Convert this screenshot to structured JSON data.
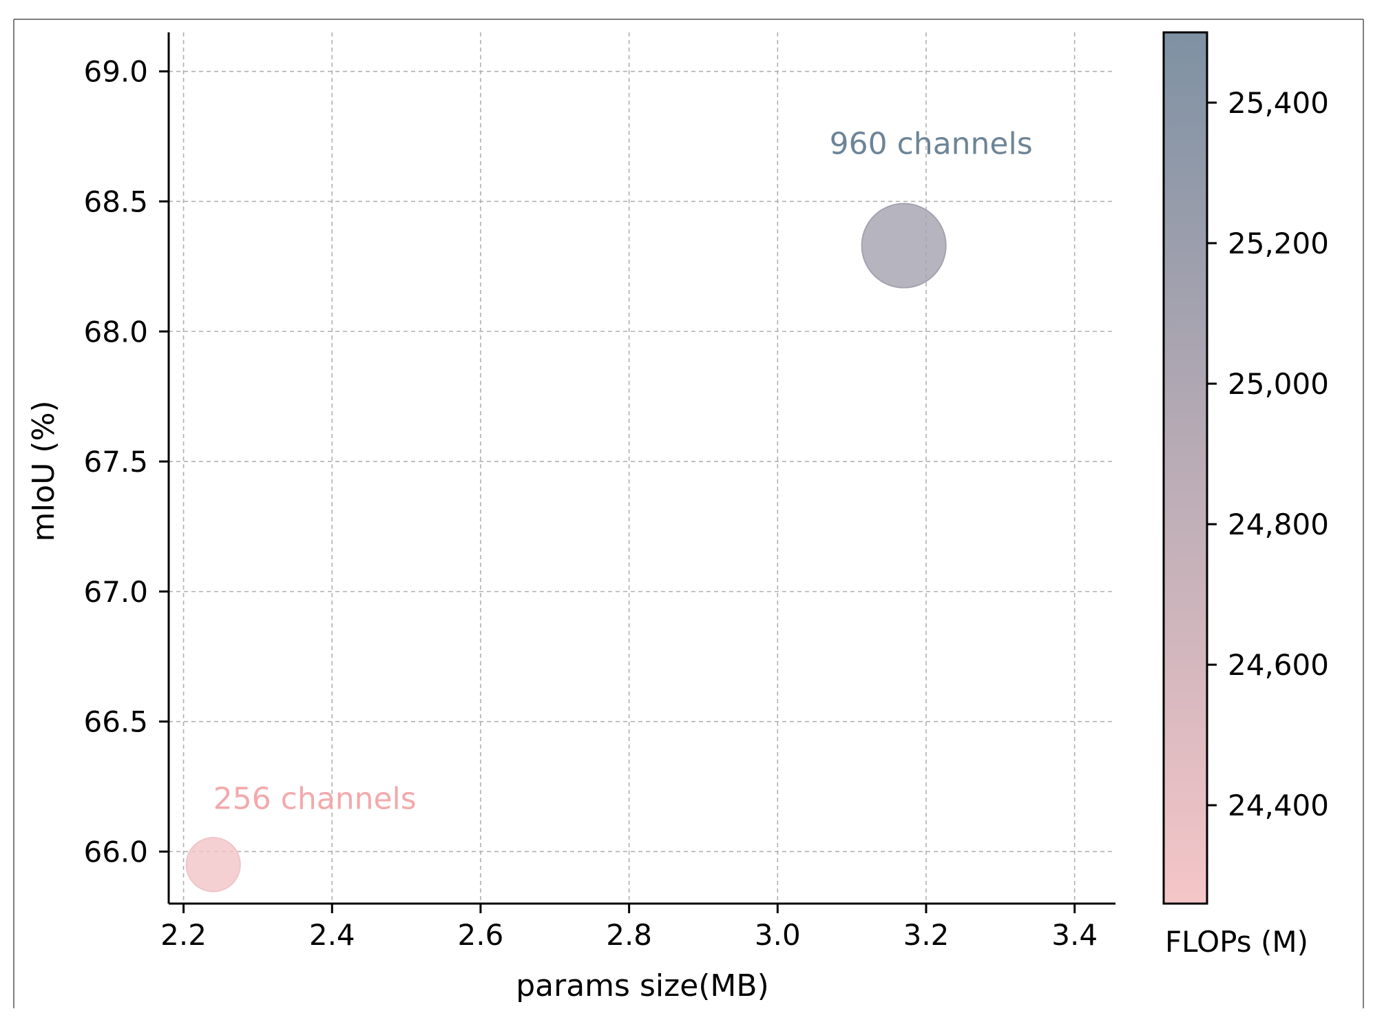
{
  "colors": {
    "low": "#f5c6c8",
    "high": "#7e91a3",
    "axis": "#000000",
    "grid": "#b0b0b0",
    "label_256": "#f3a9ab",
    "label_960": "#6d8497"
  },
  "chart_data": {
    "type": "scatter",
    "title": "",
    "xlabel": "params size(MB)",
    "ylabel": "mIoU (%)",
    "xlim": [
      2.18,
      3.455
    ],
    "ylim": [
      65.8,
      69.15
    ],
    "xticks": [
      2.2,
      2.4,
      2.6,
      2.8,
      3.0,
      3.2,
      3.4
    ],
    "xtick_labels": [
      "2.2",
      "2.4",
      "2.6",
      "2.8",
      "3.0",
      "3.2",
      "3.4"
    ],
    "yticks": [
      66.0,
      66.5,
      67.0,
      67.5,
      68.0,
      68.5,
      69.0
    ],
    "ytick_labels": [
      "66.0",
      "66.5",
      "67.0",
      "67.5",
      "68.0",
      "68.5",
      "69.0"
    ],
    "grid": true,
    "points": [
      {
        "label": "256 channels",
        "x": 2.24,
        "y": 65.95,
        "flops": 24300
      },
      {
        "label": "960 channels",
        "x": 3.17,
        "y": 68.33,
        "flops": 25100
      }
    ],
    "colorbar": {
      "label": "FLOPs (M)",
      "range": [
        24260,
        25500
      ],
      "ticks": [
        24400,
        24600,
        24800,
        25000,
        25200,
        25400
      ],
      "tick_labels": [
        "24,400",
        "24,600",
        "24,800",
        "25,000",
        "25,200",
        "25,400"
      ]
    }
  }
}
